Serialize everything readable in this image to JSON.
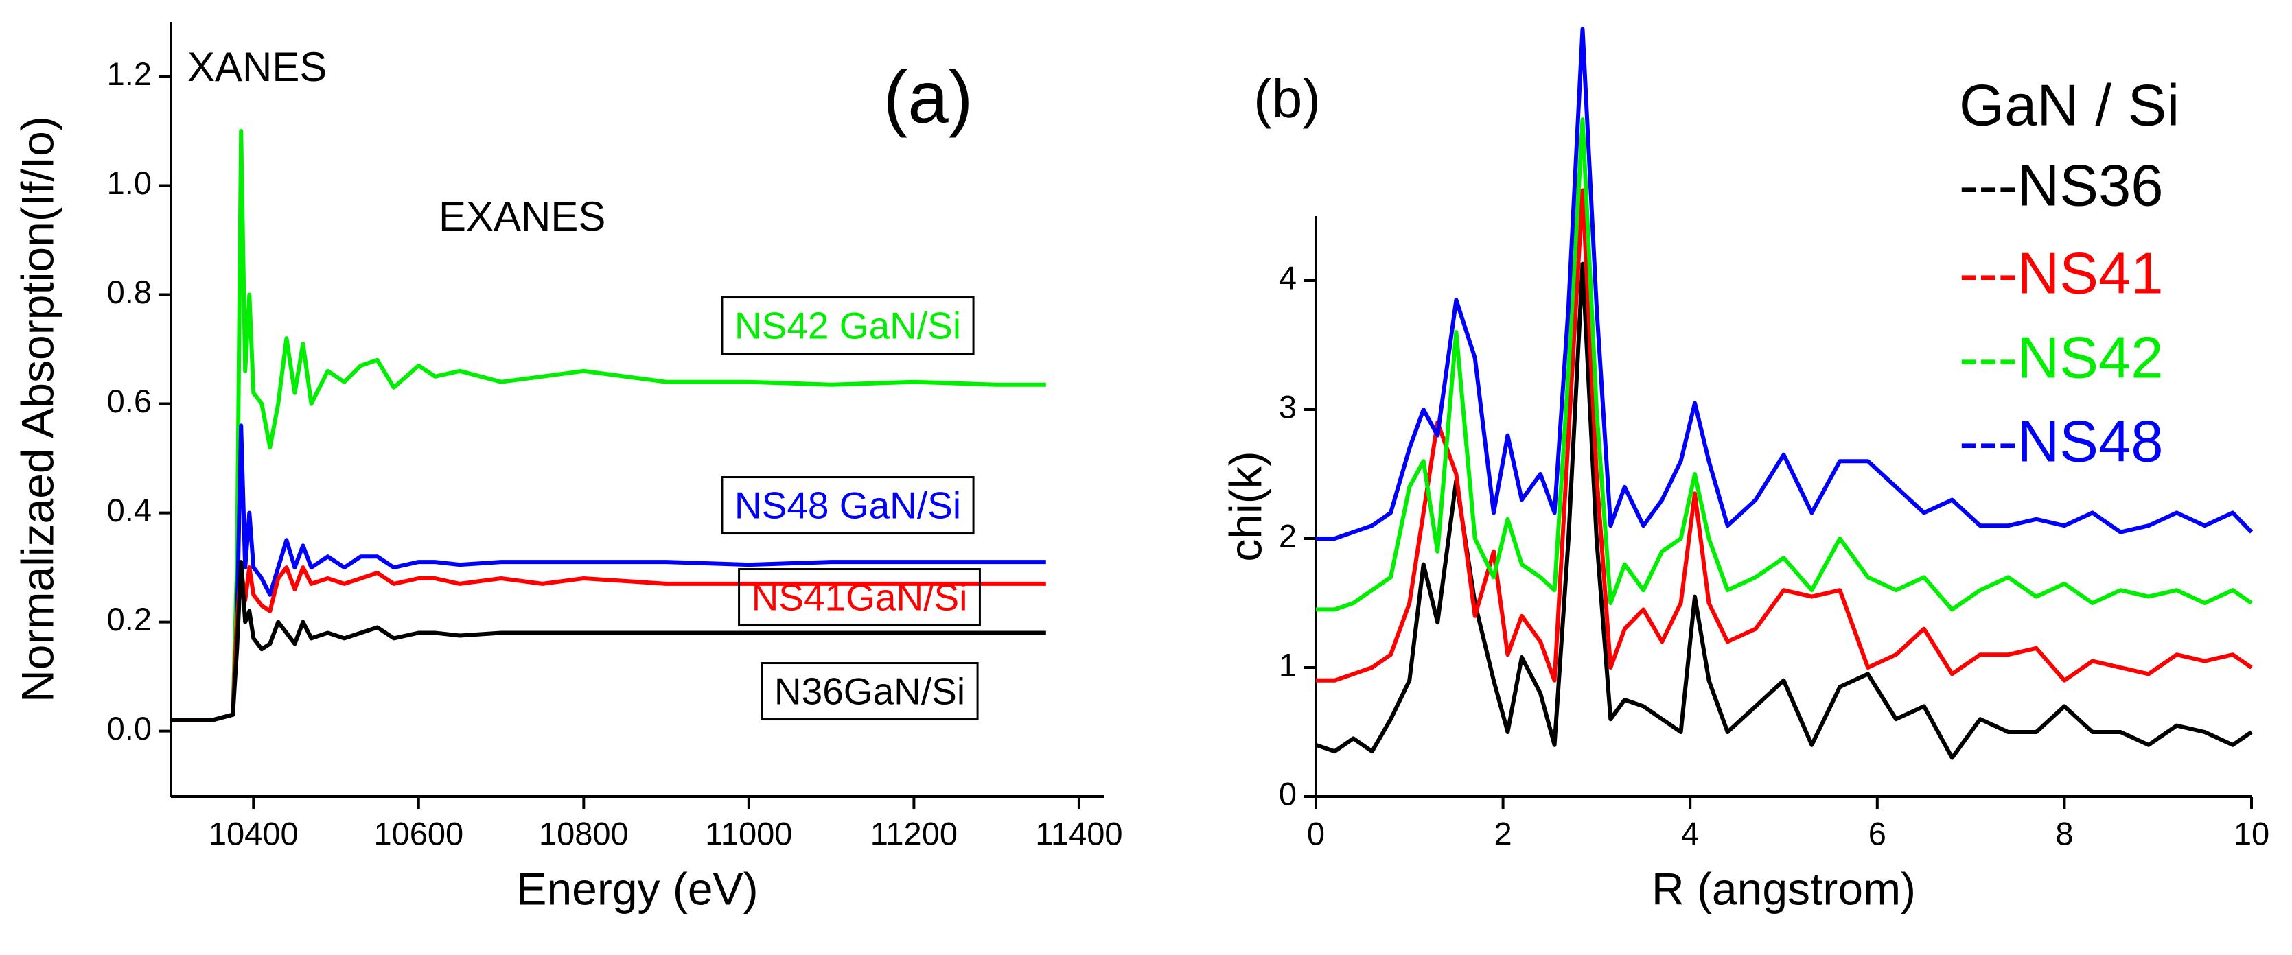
{
  "chart_data": [
    {
      "type": "line",
      "xlabel": "Energy (eV)",
      "ylabel": "Normalizaed Absorption(If/Io)",
      "annotations": [
        {
          "text": "XANES"
        },
        {
          "text": "EXANES"
        },
        {
          "text": "(a)"
        },
        {
          "text": "NS42 GaN/Si",
          "color": "#00ee00"
        },
        {
          "text": "NS48 GaN/Si",
          "color": "#0000ff"
        },
        {
          "text": "NS41GaN/Si",
          "color": "#ff0000"
        },
        {
          "text": "N36GaN/Si",
          "color": "#000000"
        }
      ],
      "x": [
        10300,
        10350,
        10375,
        10380,
        10385,
        10390,
        10395,
        10400,
        10410,
        10420,
        10430,
        10440,
        10450,
        10460,
        10470,
        10490,
        10510,
        10530,
        10550,
        10570,
        10600,
        10620,
        10650,
        10700,
        10750,
        10800,
        10900,
        11000,
        11100,
        11200,
        11300,
        11360
      ],
      "series": [
        {
          "color": "#00ee00",
          "values": [
            0.02,
            0.02,
            0.03,
            0.3,
            1.1,
            0.66,
            0.8,
            0.62,
            0.6,
            0.52,
            0.6,
            0.72,
            0.62,
            0.71,
            0.6,
            0.66,
            0.64,
            0.67,
            0.68,
            0.63,
            0.67,
            0.65,
            0.66,
            0.64,
            0.65,
            0.66,
            0.64,
            0.64,
            0.635,
            0.64,
            0.635,
            0.635
          ]
        },
        {
          "color": "#0000ff",
          "values": [
            0.02,
            0.02,
            0.03,
            0.2,
            0.56,
            0.3,
            0.4,
            0.3,
            0.28,
            0.25,
            0.3,
            0.35,
            0.3,
            0.34,
            0.3,
            0.32,
            0.3,
            0.32,
            0.32,
            0.3,
            0.31,
            0.31,
            0.305,
            0.31,
            0.31,
            0.31,
            0.31,
            0.305,
            0.31,
            0.31,
            0.31,
            0.31
          ]
        },
        {
          "color": "#ff0000",
          "values": [
            0.02,
            0.02,
            0.03,
            0.2,
            0.3,
            0.24,
            0.3,
            0.25,
            0.23,
            0.22,
            0.28,
            0.3,
            0.26,
            0.3,
            0.27,
            0.28,
            0.27,
            0.28,
            0.29,
            0.27,
            0.28,
            0.28,
            0.27,
            0.28,
            0.27,
            0.28,
            0.27,
            0.27,
            0.27,
            0.27,
            0.27,
            0.27
          ]
        },
        {
          "color": "#000000",
          "values": [
            0.02,
            0.02,
            0.03,
            0.15,
            0.31,
            0.2,
            0.22,
            0.17,
            0.15,
            0.16,
            0.2,
            0.18,
            0.16,
            0.2,
            0.17,
            0.18,
            0.17,
            0.18,
            0.19,
            0.17,
            0.18,
            0.18,
            0.175,
            0.18,
            0.18,
            0.18,
            0.18,
            0.18,
            0.18,
            0.18,
            0.18,
            0.18
          ]
        }
      ],
      "xlim": [
        10300,
        11430
      ],
      "xticks": [
        10400,
        10600,
        10800,
        11000,
        11200,
        11400
      ],
      "ylim": [
        -0.12,
        1.3
      ],
      "yticks": [
        {
          "value": 0,
          "label": "0.0"
        },
        {
          "value": 0.2,
          "label": "0.2"
        },
        {
          "value": 0.4,
          "label": "0.4"
        },
        {
          "value": 0.6,
          "label": "0.6"
        },
        {
          "value": 0.8,
          "label": "0.8"
        },
        {
          "value": 1,
          "label": "1.0"
        },
        {
          "value": 1.2,
          "label": "1.2"
        }
      ]
    },
    {
      "type": "line",
      "xlabel": "R (angstrom)",
      "ylabel": "chi(k)",
      "annotations": [
        {
          "text": "(b)"
        }
      ],
      "legend_title": "GaN / Si",
      "x": [
        0,
        0.2,
        0.4,
        0.6,
        0.8,
        1.0,
        1.15,
        1.3,
        1.5,
        1.7,
        1.9,
        2.05,
        2.2,
        2.4,
        2.55,
        2.7,
        2.85,
        3.0,
        3.15,
        3.3,
        3.5,
        3.7,
        3.9,
        4.05,
        4.2,
        4.4,
        4.7,
        5.0,
        5.3,
        5.6,
        5.9,
        6.2,
        6.5,
        6.8,
        7.1,
        7.4,
        7.7,
        8.0,
        8.3,
        8.6,
        8.9,
        9.2,
        9.5,
        9.8,
        10.0
      ],
      "series": [
        {
          "name": "---NS36",
          "color": "#000000",
          "values": [
            0.4,
            0.35,
            0.45,
            0.35,
            0.6,
            0.9,
            1.8,
            1.35,
            2.45,
            1.5,
            0.9,
            0.5,
            1.08,
            0.8,
            0.4,
            2.0,
            4.13,
            2.0,
            0.6,
            0.75,
            0.7,
            0.6,
            0.5,
            1.55,
            0.9,
            0.5,
            0.7,
            0.9,
            0.4,
            0.85,
            0.95,
            0.6,
            0.7,
            0.3,
            0.6,
            0.5,
            0.5,
            0.7,
            0.5,
            0.5,
            0.4,
            0.55,
            0.5,
            0.4,
            0.5
          ]
        },
        {
          "name": "---NS41",
          "color": "#ff0000",
          "values": [
            0.9,
            0.9,
            0.95,
            1.0,
            1.1,
            1.5,
            2.2,
            2.9,
            2.5,
            1.4,
            1.9,
            1.1,
            1.4,
            1.2,
            0.9,
            2.8,
            4.7,
            2.5,
            1.0,
            1.3,
            1.45,
            1.2,
            1.5,
            2.35,
            1.5,
            1.2,
            1.3,
            1.6,
            1.55,
            1.6,
            1.0,
            1.1,
            1.3,
            0.95,
            1.1,
            1.1,
            1.15,
            0.9,
            1.05,
            1.0,
            0.95,
            1.1,
            1.05,
            1.1,
            1.0
          ]
        },
        {
          "name": "---NS42",
          "color": "#00ee00",
          "values": [
            1.45,
            1.45,
            1.5,
            1.6,
            1.7,
            2.4,
            2.6,
            1.9,
            3.6,
            2.0,
            1.7,
            2.15,
            1.8,
            1.7,
            1.6,
            3.3,
            5.25,
            3.0,
            1.5,
            1.8,
            1.6,
            1.9,
            2.0,
            2.5,
            2.0,
            1.6,
            1.7,
            1.85,
            1.6,
            2.0,
            1.7,
            1.6,
            1.7,
            1.45,
            1.6,
            1.7,
            1.55,
            1.65,
            1.5,
            1.6,
            1.55,
            1.6,
            1.5,
            1.6,
            1.5
          ]
        },
        {
          "name": "---NS48",
          "color": "#0000ff",
          "values": [
            2.0,
            2.0,
            2.05,
            2.1,
            2.2,
            2.7,
            3.0,
            2.8,
            3.85,
            3.4,
            2.2,
            2.8,
            2.3,
            2.5,
            2.2,
            3.8,
            5.95,
            3.8,
            2.1,
            2.4,
            2.1,
            2.3,
            2.6,
            3.05,
            2.6,
            2.1,
            2.3,
            2.65,
            2.2,
            2.6,
            2.6,
            2.4,
            2.2,
            2.3,
            2.1,
            2.1,
            2.15,
            2.1,
            2.2,
            2.05,
            2.1,
            2.2,
            2.1,
            2.2,
            2.05
          ]
        }
      ],
      "xlim": [
        0,
        10
      ],
      "xticks": [
        0,
        2,
        4,
        6,
        8,
        10
      ],
      "ylim": [
        0,
        4.5
      ],
      "yticks": [
        0,
        1,
        2,
        3,
        4
      ]
    }
  ]
}
